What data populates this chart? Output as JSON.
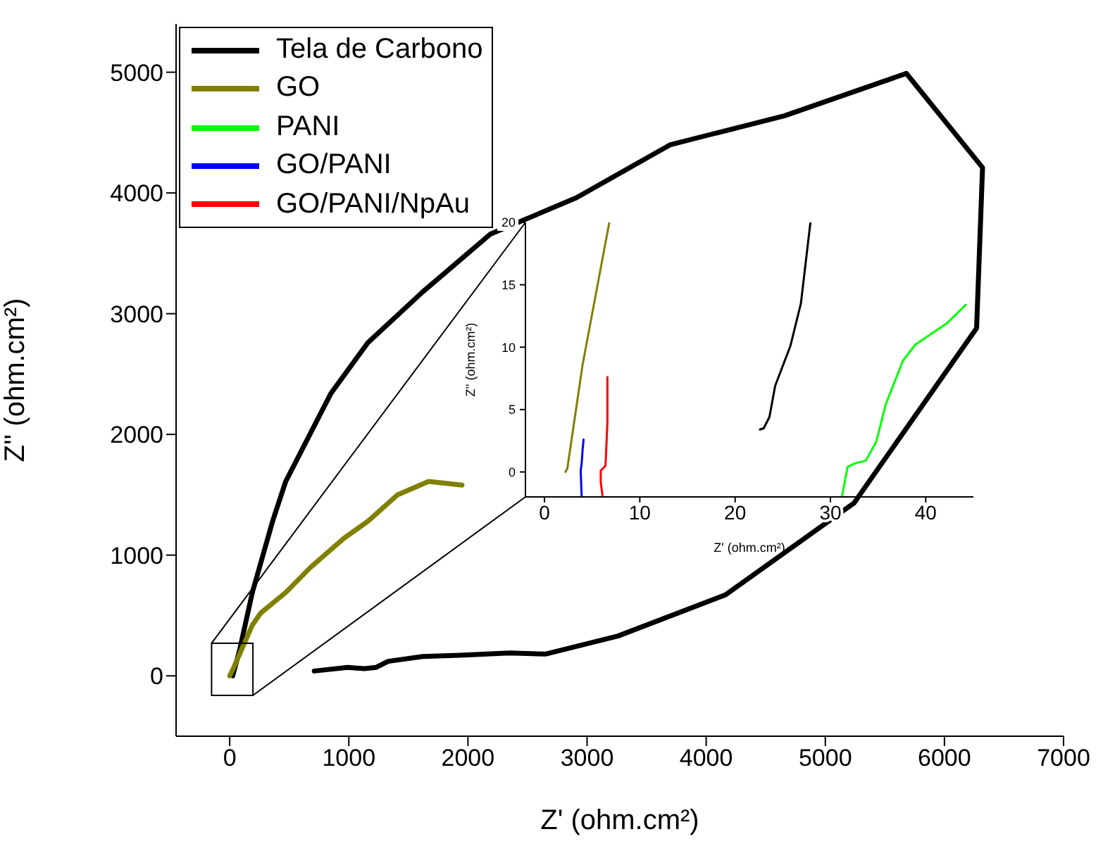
{
  "chart_data": [
    {
      "type": "line",
      "xlabel": "Z' (ohm.cm²)",
      "ylabel": "Z'' (ohm.cm²)",
      "xlim": [
        -450,
        7000
      ],
      "ylim": [
        -500,
        5400
      ],
      "xticks": [
        0,
        1000,
        2000,
        3000,
        4000,
        5000,
        6000,
        7000
      ],
      "yticks": [
        0,
        1000,
        2000,
        3000,
        4000,
        5000
      ],
      "series": [
        {
          "color": "#000000",
          "x": [
            25,
            80,
            190,
            360,
            470,
            850,
            1160,
            1620,
            2190,
            2910,
            3700,
            4660,
            5680,
            6320,
            6270,
            5240,
            4160,
            3260,
            2650,
            2350,
            1930,
            1620,
            1330,
            1230,
            1130,
            990,
            710
          ],
          "values": [
            0,
            200,
            690,
            1280,
            1610,
            2340,
            2760,
            3180,
            3660,
            3960,
            4400,
            4640,
            4990,
            4210,
            2880,
            1430,
            670,
            330,
            180,
            190,
            170,
            160,
            120,
            70,
            60,
            70,
            40
          ]
        },
        {
          "color": "#808000",
          "x": [
            0,
            30,
            190,
            260,
            470,
            680,
            960,
            1160,
            1410,
            1670,
            1950
          ],
          "values": [
            0,
            60,
            420,
            520,
            690,
            900,
            1140,
            1280,
            1500,
            1610,
            1580
          ]
        }
      ]
    },
    {
      "type": "line",
      "xlabel": "Z' (ohm.cm²)",
      "ylabel": "Z'' (ohm.cm²)",
      "xlim": [
        -2,
        45
      ],
      "ylim": [
        -2,
        20
      ],
      "xticks": [
        0,
        10,
        20,
        30,
        40
      ],
      "yticks": [
        0,
        5,
        10,
        15,
        20
      ],
      "legend": "top left",
      "series": [
        {
          "name": "Tela de Carbono",
          "color": "#000000",
          "x": [
            22.6,
            23.0,
            23.6,
            24.2,
            25.8,
            26.9,
            27.9
          ],
          "values": [
            3.4,
            3.5,
            4.4,
            6.9,
            10.1,
            13.5,
            20
          ]
        },
        {
          "name": "GO",
          "color": "#808000",
          "x": [
            2.2,
            2.4,
            4.0,
            6.8
          ],
          "values": [
            0,
            0.3,
            8.6,
            20
          ]
        },
        {
          "name": "PANI",
          "color": "#00ff00",
          "x": [
            31.2,
            31.8,
            32.6,
            33.7,
            34.8,
            35.8,
            37.6,
            38.9,
            42.2,
            44.2
          ],
          "values": [
            -2,
            0.4,
            0.7,
            0.9,
            2.4,
            5.4,
            8.9,
            10.2,
            11.9,
            13.4
          ]
        },
        {
          "name": "GO/PANI",
          "color": "#0000ff",
          "x": [
            3.9,
            3.8,
            3.9,
            4.0,
            4.1
          ],
          "values": [
            -2,
            0.1,
            0.7,
            1.8,
            2.6
          ]
        },
        {
          "name": "GO/PANI/NpAu",
          "color": "#ff0000",
          "x": [
            6.1,
            5.9,
            5.9,
            6.4,
            6.6,
            6.6
          ],
          "values": [
            -2,
            -0.8,
            0.1,
            0.5,
            4.0,
            7.6
          ]
        }
      ]
    }
  ]
}
